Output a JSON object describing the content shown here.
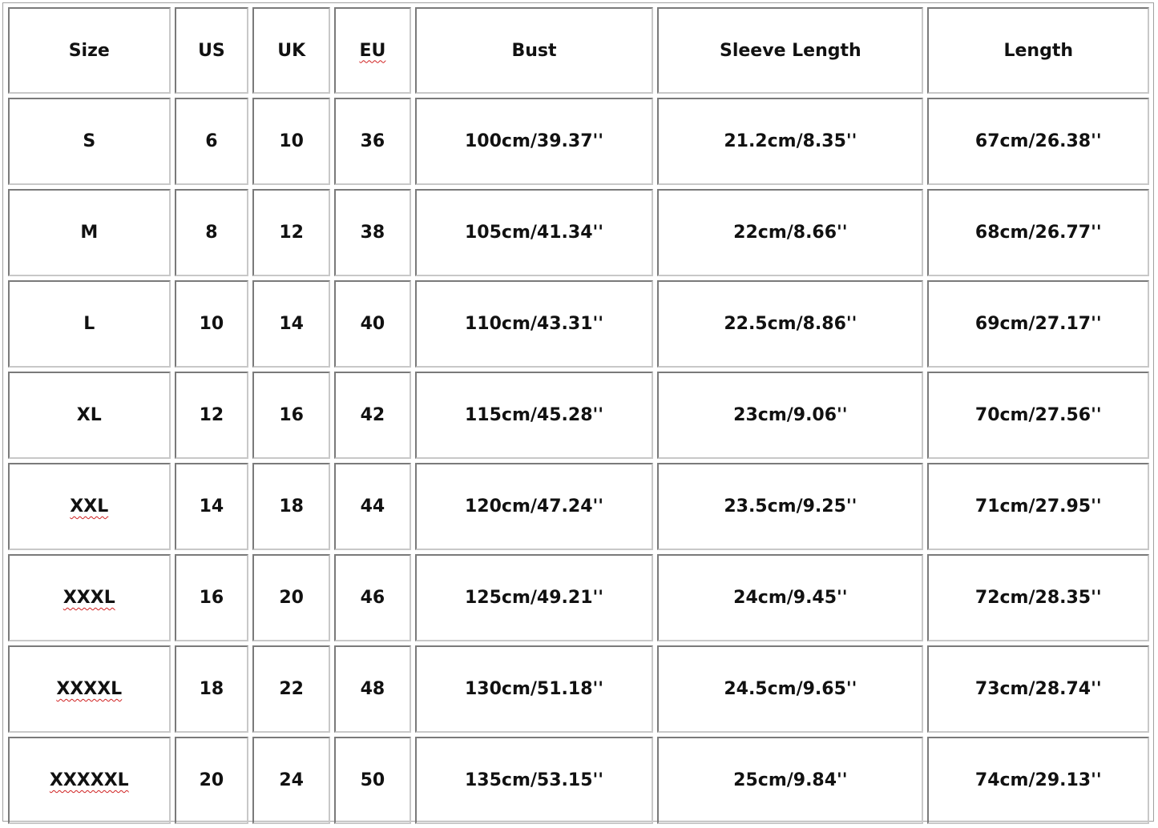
{
  "table": {
    "headers": [
      "Size",
      "US",
      "UK",
      "EU",
      "Bust",
      "Sleeve Length",
      "Length"
    ],
    "rows": [
      [
        "S",
        "6",
        "10",
        "36",
        "100cm/39.37''",
        "21.2cm/8.35''",
        "67cm/26.38''"
      ],
      [
        "M",
        "8",
        "12",
        "38",
        "105cm/41.34''",
        "22cm/8.66''",
        "68cm/26.77''"
      ],
      [
        "L",
        "10",
        "14",
        "40",
        "110cm/43.31''",
        "22.5cm/8.86''",
        "69cm/27.17''"
      ],
      [
        "XL",
        "12",
        "16",
        "42",
        "115cm/45.28''",
        "23cm/9.06''",
        "70cm/27.56''"
      ],
      [
        "XXL",
        "14",
        "18",
        "44",
        "120cm/47.24''",
        "23.5cm/9.25''",
        "71cm/27.95''"
      ],
      [
        "XXXL",
        "16",
        "20",
        "46",
        "125cm/49.21''",
        "24cm/9.45''",
        "72cm/28.35''"
      ],
      [
        "XXXXL",
        "18",
        "22",
        "48",
        "130cm/51.18''",
        "24.5cm/9.65''",
        "73cm/28.74''"
      ],
      [
        "XXXXXL",
        "20",
        "24",
        "50",
        "135cm/53.15''",
        "25cm/9.84''",
        "74cm/29.13''"
      ]
    ],
    "spellcheck_flagged": [
      "EU",
      "XXL",
      "XXXL",
      "XXXXL",
      "XXXXXL"
    ],
    "spellcheck_color": "#d02020"
  }
}
